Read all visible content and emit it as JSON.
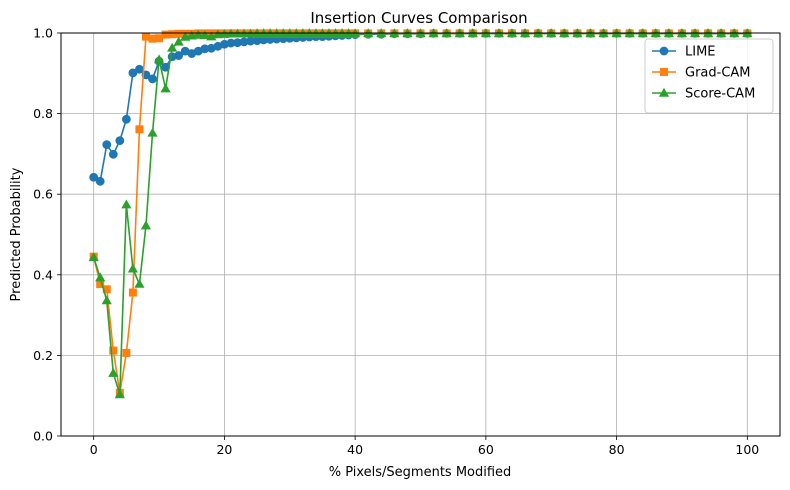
{
  "chart_data": {
    "type": "line",
    "title": "Insertion Curves Comparison",
    "xlabel": "% Pixels/Segments Modified",
    "ylabel": "Predicted Probability",
    "xlim": [
      -5,
      105
    ],
    "ylim": [
      0.0,
      1.0
    ],
    "xticks": [
      0,
      20,
      40,
      60,
      80,
      100
    ],
    "yticks": [
      0.0,
      0.2,
      0.4,
      0.6,
      0.8,
      1.0
    ],
    "grid": true,
    "legend_position": "upper right",
    "series": [
      {
        "name": "LIME",
        "color": "#1f77b4",
        "marker": "circle",
        "x": [
          0,
          1,
          2,
          3,
          4,
          5,
          6,
          7,
          8,
          9,
          10,
          11,
          12,
          13,
          14,
          15,
          16,
          17,
          18,
          19,
          20,
          21,
          22,
          23,
          24,
          25,
          26,
          27,
          28,
          29,
          30,
          31,
          32,
          33,
          34,
          35,
          36,
          37,
          38,
          39,
          40,
          42,
          44,
          46,
          48,
          50,
          52,
          54,
          56,
          58,
          60,
          62,
          64,
          66,
          68,
          70,
          72,
          74,
          76,
          78,
          80,
          82,
          84,
          86,
          88,
          90,
          92,
          94,
          96,
          98,
          100
        ],
        "y": [
          0.642,
          0.632,
          0.723,
          0.699,
          0.733,
          0.786,
          0.901,
          0.91,
          0.896,
          0.886,
          0.93,
          0.915,
          0.941,
          0.944,
          0.955,
          0.949,
          0.955,
          0.961,
          0.962,
          0.967,
          0.972,
          0.975,
          0.976,
          0.978,
          0.98,
          0.981,
          0.983,
          0.984,
          0.985,
          0.986,
          0.987,
          0.988,
          0.989,
          0.99,
          0.991,
          0.991,
          0.992,
          0.993,
          0.994,
          0.995,
          0.996,
          0.997,
          0.997,
          0.998,
          0.998,
          0.998,
          0.999,
          0.999,
          0.999,
          0.999,
          0.999,
          0.999,
          0.999,
          0.999,
          0.999,
          0.999,
          0.999,
          0.999,
          0.999,
          0.999,
          0.999,
          0.999,
          0.999,
          0.999,
          0.999,
          0.999,
          0.999,
          0.999,
          0.999,
          0.999,
          0.999
        ]
      },
      {
        "name": "Grad-CAM",
        "color": "#ff7f0e",
        "marker": "square",
        "x": [
          0,
          1,
          2,
          3,
          4,
          5,
          6,
          7,
          8,
          9,
          10,
          11,
          12,
          13,
          14,
          15,
          16,
          17,
          18,
          19,
          20,
          21,
          22,
          23,
          24,
          25,
          26,
          27,
          28,
          29,
          30,
          31,
          32,
          33,
          34,
          35,
          36,
          37,
          38,
          39,
          40,
          42,
          44,
          46,
          48,
          50,
          52,
          54,
          56,
          58,
          60,
          62,
          64,
          66,
          68,
          70,
          72,
          74,
          76,
          78,
          80,
          82,
          84,
          86,
          88,
          90,
          92,
          94,
          96,
          98,
          100
        ],
        "y": [
          0.445,
          0.377,
          0.364,
          0.212,
          0.107,
          0.206,
          0.356,
          0.761,
          0.991,
          0.986,
          0.987,
          0.996,
          0.997,
          0.998,
          0.998,
          0.998,
          0.999,
          0.999,
          0.999,
          0.999,
          0.999,
          0.999,
          0.999,
          0.999,
          0.999,
          0.999,
          0.999,
          0.999,
          0.999,
          0.999,
          0.999,
          0.999,
          0.999,
          0.999,
          0.999,
          0.999,
          0.999,
          0.999,
          0.999,
          0.999,
          0.999,
          0.999,
          0.999,
          0.999,
          0.999,
          0.999,
          0.999,
          0.999,
          0.999,
          0.999,
          0.999,
          0.999,
          0.999,
          0.999,
          0.999,
          0.999,
          0.999,
          0.999,
          0.999,
          0.999,
          0.999,
          0.999,
          0.999,
          0.999,
          0.999,
          0.999,
          0.999,
          0.999,
          0.999,
          0.999,
          0.999
        ]
      },
      {
        "name": "Score-CAM",
        "color": "#2ca02c",
        "marker": "triangle",
        "x": [
          0,
          1,
          2,
          3,
          4,
          5,
          6,
          7,
          8,
          9,
          10,
          11,
          12,
          13,
          14,
          15,
          16,
          17,
          18,
          19,
          20,
          21,
          22,
          23,
          24,
          25,
          26,
          27,
          28,
          29,
          30,
          31,
          32,
          33,
          34,
          35,
          36,
          37,
          38,
          39,
          40,
          42,
          44,
          46,
          48,
          50,
          52,
          54,
          56,
          58,
          60,
          62,
          64,
          66,
          68,
          70,
          72,
          74,
          76,
          78,
          80,
          82,
          84,
          86,
          88,
          90,
          92,
          94,
          96,
          98,
          100
        ],
        "y": [
          0.443,
          0.393,
          0.336,
          0.156,
          0.103,
          0.574,
          0.415,
          0.377,
          0.522,
          0.752,
          0.934,
          0.862,
          0.963,
          0.978,
          0.99,
          0.993,
          0.995,
          0.994,
          0.991,
          0.996,
          0.997,
          0.998,
          0.998,
          0.998,
          0.998,
          0.999,
          0.999,
          0.999,
          0.999,
          0.999,
          0.999,
          0.999,
          0.999,
          0.999,
          0.999,
          0.999,
          0.999,
          0.999,
          0.999,
          0.999,
          0.999,
          0.999,
          0.999,
          0.999,
          0.999,
          0.999,
          0.999,
          0.999,
          0.999,
          0.999,
          0.999,
          0.999,
          0.999,
          0.999,
          0.999,
          0.999,
          0.999,
          0.999,
          0.999,
          0.999,
          0.999,
          0.999,
          0.999,
          0.999,
          0.999,
          0.999,
          0.999,
          0.999,
          0.999,
          0.999,
          0.999
        ]
      }
    ]
  }
}
